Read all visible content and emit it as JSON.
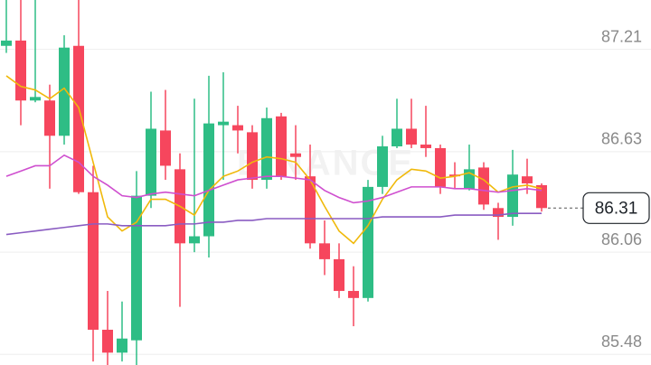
{
  "chart_data": {
    "type": "candlestick",
    "watermark": "BINANCE",
    "up_color": "#2ebd85",
    "down_color": "#f6465d",
    "open": [
      87.23,
      87.26,
      86.92,
      86.92,
      86.72,
      87.23,
      86.4,
      85.62,
      85.49,
      85.56,
      86.38,
      86.75,
      86.53,
      86.11,
      86.15,
      86.78,
      86.78,
      86.74,
      86.47,
      86.83,
      86.62,
      86.49,
      86.11,
      86.02,
      85.84,
      85.8,
      86.43,
      86.66,
      86.76,
      86.67,
      86.65,
      86.5,
      86.42,
      86.54,
      86.31,
      86.26,
      86.49,
      86.44
    ],
    "high": [
      87.49,
      87.49,
      87.49,
      87.01,
      87.29,
      87.49,
      86.55,
      85.84,
      85.78,
      86.52,
      86.97,
      86.98,
      86.62,
      86.93,
      87.06,
      87.08,
      86.89,
      86.78,
      86.88,
      86.85,
      86.78,
      86.67,
      86.24,
      86.11,
      85.98,
      86.47,
      86.72,
      86.93,
      86.93,
      86.89,
      86.67,
      86.57,
      86.67,
      86.57,
      86.34,
      86.64,
      86.59,
      86.45
    ],
    "low": [
      87.19,
      86.78,
      86.91,
      86.42,
      86.67,
      86.39,
      85.44,
      85.42,
      85.44,
      85.42,
      86.31,
      86.47,
      85.75,
      86.06,
      86.03,
      86.47,
      86.62,
      86.42,
      86.42,
      86.47,
      86.47,
      86.08,
      85.93,
      85.8,
      85.64,
      85.78,
      86.39,
      86.65,
      86.65,
      86.6,
      86.39,
      86.42,
      86.41,
      86.3,
      86.13,
      86.21,
      86.39,
      86.29
    ],
    "close": [
      87.26,
      86.92,
      86.94,
      86.72,
      87.22,
      86.4,
      85.62,
      85.49,
      85.57,
      86.38,
      86.76,
      86.55,
      86.11,
      86.15,
      86.79,
      86.8,
      86.75,
      86.47,
      86.82,
      86.49,
      86.6,
      86.11,
      86.02,
      85.84,
      85.8,
      86.43,
      86.66,
      86.76,
      86.67,
      86.65,
      86.43,
      86.49,
      86.53,
      86.33,
      86.26,
      86.5,
      86.45,
      86.31
    ],
    "moving_averages": [
      {
        "color": "#f0b90b",
        "values": [
          87.06,
          87.0,
          86.98,
          86.93,
          86.99,
          86.88,
          86.57,
          86.26,
          86.18,
          86.23,
          86.36,
          86.36,
          86.32,
          86.27,
          86.41,
          86.49,
          86.52,
          86.57,
          86.6,
          86.59,
          86.57,
          86.47,
          86.32,
          86.18,
          86.11,
          86.21,
          86.36,
          86.47,
          86.53,
          86.52,
          86.48,
          86.49,
          86.51,
          86.47,
          86.4,
          86.43,
          86.44,
          86.42
        ]
      },
      {
        "color": "#cf4fcf",
        "values": [
          86.49,
          86.52,
          86.55,
          86.55,
          86.61,
          86.57,
          86.49,
          86.44,
          86.38,
          86.37,
          86.39,
          86.4,
          86.39,
          86.38,
          86.41,
          86.44,
          86.47,
          86.48,
          86.49,
          86.49,
          86.48,
          86.47,
          86.41,
          86.37,
          86.34,
          86.35,
          86.37,
          86.4,
          86.43,
          86.43,
          86.43,
          86.42,
          86.42,
          86.41,
          86.4,
          86.41,
          86.42,
          86.41
        ]
      },
      {
        "color": "#8a5cc2",
        "values": [
          86.16,
          86.17,
          86.18,
          86.19,
          86.2,
          86.21,
          86.22,
          86.22,
          86.21,
          86.21,
          86.21,
          86.21,
          86.22,
          86.22,
          86.23,
          86.23,
          86.24,
          86.24,
          86.25,
          86.25,
          86.25,
          86.25,
          86.25,
          86.25,
          86.25,
          86.25,
          86.26,
          86.26,
          86.26,
          86.26,
          86.26,
          86.27,
          86.27,
          86.27,
          86.27,
          86.28,
          86.28,
          86.28
        ]
      }
    ],
    "last_price": 86.31,
    "ylim": [
      85.42,
      87.49
    ],
    "yticks": [
      85.48,
      86.06,
      86.63,
      87.21
    ],
    "grid": true
  }
}
